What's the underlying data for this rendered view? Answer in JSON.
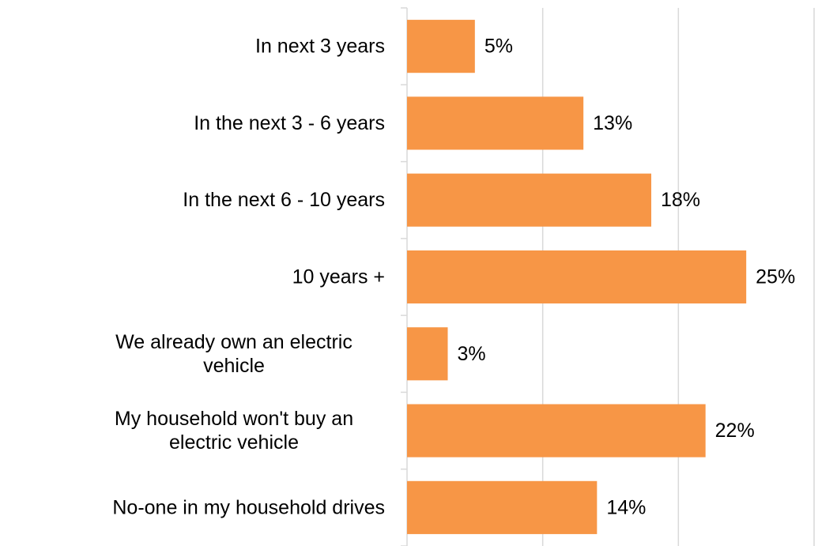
{
  "chart_data": {
    "type": "bar",
    "orientation": "horizontal",
    "categories": [
      [
        "In next 3 years"
      ],
      [
        "In the next 3 - 6 years"
      ],
      [
        "In the next 6 - 10 years"
      ],
      [
        "10 years +"
      ],
      [
        "We already own an electric",
        "vehicle"
      ],
      [
        "My household won't buy an",
        "electric vehicle"
      ],
      [
        "No-one in my household drives"
      ]
    ],
    "values": [
      5,
      13,
      18,
      25,
      3,
      22,
      14
    ],
    "value_labels": [
      "5%",
      "13%",
      "18%",
      "25%",
      "3%",
      "22%",
      "14%"
    ],
    "unit": "%",
    "xlim": [
      0,
      30
    ],
    "x_gridlines": [
      0,
      10,
      20,
      30
    ],
    "grid": true,
    "legend": "none",
    "bar_color": "#f79646",
    "title": "",
    "xlabel": "",
    "ylabel": ""
  }
}
